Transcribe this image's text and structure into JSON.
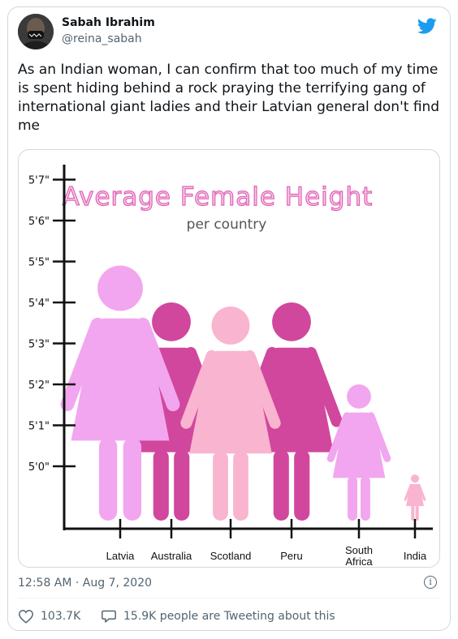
{
  "author": {
    "name": "Sabah Ibrahim",
    "handle": "@reina_sabah"
  },
  "tweet": {
    "text_lines": [
      "As an Indian woman, I can confirm that too much of my time",
      "is spent hiding behind a rock praying the terrifying gang of",
      "international giant ladies and their Latvian general don't find",
      "me"
    ],
    "timestamp": "12:58 AM · Aug 7, 2020",
    "likes": "103.7K",
    "retweet_summary": "15.9K people are Tweeting about this"
  },
  "icons": {
    "brand": "twitter-bird-icon",
    "info": "info-icon",
    "like": "heart-icon",
    "reply": "speech-bubble-icon"
  },
  "colors": {
    "twitter_blue": "#1d9bf0",
    "light_pink": "#f2a6ef",
    "magenta": "#d1479d",
    "pale_pink": "#f9b4cf",
    "title_pink": "#e060b5"
  },
  "chart_data": {
    "type": "pictograph",
    "title": "Average Female Height",
    "subtitle": "per country",
    "y_ticks": [
      "5'0\"",
      "5'1\"",
      "5'2\"",
      "5'3\"",
      "5'4\"",
      "5'5\"",
      "5'6\"",
      "5'7\""
    ],
    "categories": [
      "Latvia",
      "Australia",
      "Scotland",
      "Peru",
      "South Africa",
      "India"
    ],
    "category_lines": [
      [
        "Latvia"
      ],
      [
        "Australia"
      ],
      [
        "Scotland"
      ],
      [
        "Peru"
      ],
      [
        "South",
        "Africa"
      ],
      [
        "India"
      ]
    ],
    "figure_top_inches": [
      64.9,
      64.0,
      63.9,
      64.0,
      62.0,
      59.8
    ],
    "figure_colors": [
      "#f2a6ef",
      "#d1479d",
      "#f9b4cf",
      "#d1479d",
      "#f2a6ef",
      "#f9b4cf"
    ],
    "grid": false
  }
}
